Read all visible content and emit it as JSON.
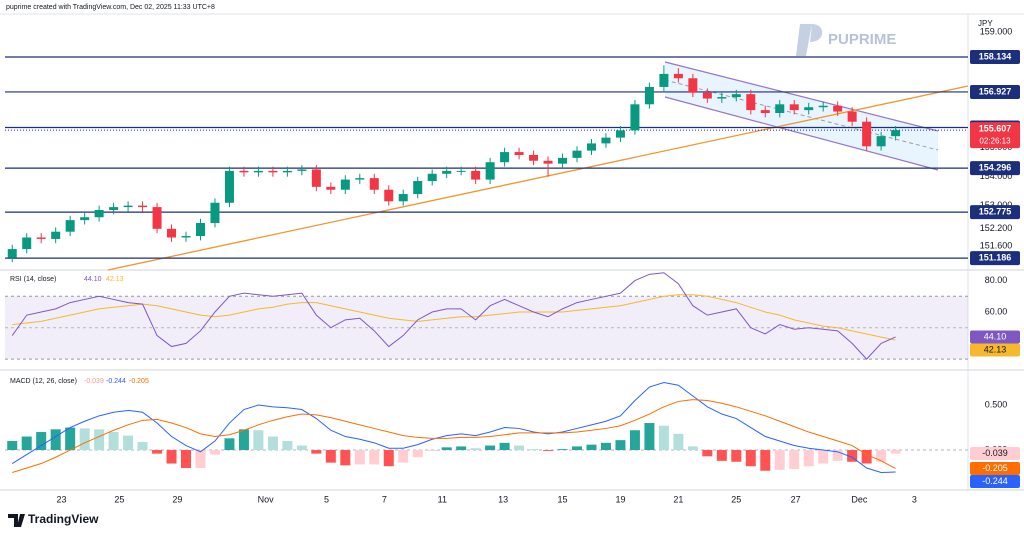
{
  "header": "puprime created with TradingView.com, Dec 02, 2025 11:33 UTC+8",
  "watermark": "PUPRIME",
  "brand": "TradingView",
  "chart_data": [
    {
      "type": "candlestick",
      "currency": "JPY",
      "countdown": "02:26:13",
      "x": [
        0,
        1,
        2,
        3,
        4,
        5,
        6,
        7,
        8,
        9,
        10,
        11,
        12,
        13,
        14,
        15,
        16,
        17,
        18,
        19,
        20,
        21,
        22,
        23,
        24,
        25,
        26,
        27,
        28,
        29,
        30,
        31,
        32,
        33,
        34,
        35,
        36,
        37,
        38,
        39,
        40,
        41,
        42,
        43,
        44,
        45,
        46,
        47,
        48,
        49,
        50,
        51,
        52,
        53,
        54,
        55,
        56,
        57,
        58,
        59,
        60,
        61
      ],
      "open": [
        151.2,
        151.5,
        151.9,
        151.85,
        152.1,
        152.5,
        152.6,
        152.85,
        152.95,
        153.0,
        152.95,
        152.2,
        151.9,
        151.95,
        152.4,
        153.1,
        154.2,
        154.15,
        154.2,
        154.15,
        154.2,
        154.25,
        153.65,
        153.55,
        153.9,
        153.95,
        153.55,
        153.15,
        153.4,
        153.85,
        154.1,
        154.2,
        154.2,
        153.9,
        154.5,
        154.85,
        154.75,
        154.55,
        154.45,
        154.65,
        154.9,
        155.15,
        155.35,
        155.6,
        156.5,
        157.1,
        157.55,
        157.4,
        156.9,
        156.7,
        156.75,
        156.85,
        156.3,
        156.2,
        156.5,
        156.3,
        156.4,
        156.45,
        156.25,
        155.9,
        155.05,
        155.4
      ],
      "high": [
        151.65,
        152.05,
        152.05,
        152.25,
        152.65,
        152.75,
        153.0,
        153.1,
        153.15,
        153.15,
        153.1,
        152.35,
        152.1,
        152.55,
        153.25,
        154.35,
        154.35,
        154.35,
        154.35,
        154.35,
        154.4,
        154.4,
        153.8,
        154.05,
        154.1,
        154.1,
        153.7,
        153.55,
        154.0,
        154.25,
        154.35,
        154.35,
        154.35,
        154.65,
        155.0,
        155.0,
        154.9,
        154.7,
        154.8,
        155.05,
        155.3,
        155.5,
        155.75,
        156.65,
        157.25,
        157.85,
        157.75,
        157.55,
        157.05,
        156.9,
        157.0,
        157.0,
        156.45,
        156.65,
        156.65,
        156.55,
        156.6,
        156.6,
        156.4,
        156.05,
        155.55,
        155.75
      ],
      "low": [
        151.05,
        151.35,
        151.7,
        151.7,
        151.95,
        152.35,
        152.45,
        152.7,
        152.8,
        152.8,
        152.05,
        151.75,
        151.75,
        151.8,
        152.25,
        152.95,
        154.0,
        154.0,
        154.0,
        154.0,
        154.05,
        153.5,
        153.4,
        153.4,
        153.75,
        153.4,
        153.0,
        153.0,
        153.25,
        153.7,
        153.95,
        154.05,
        153.75,
        153.75,
        154.35,
        154.6,
        154.4,
        154.0,
        154.3,
        154.5,
        154.75,
        155.0,
        155.2,
        155.45,
        156.35,
        156.95,
        157.25,
        156.75,
        156.55,
        156.55,
        156.6,
        156.15,
        156.05,
        156.05,
        156.15,
        156.15,
        156.25,
        156.1,
        155.75,
        154.9,
        154.9,
        155.25
      ],
      "close": [
        151.5,
        151.9,
        151.85,
        152.1,
        152.5,
        152.6,
        152.85,
        152.95,
        153.0,
        152.95,
        152.2,
        151.9,
        151.95,
        152.4,
        153.1,
        154.2,
        154.15,
        154.2,
        154.15,
        154.2,
        154.25,
        153.65,
        153.55,
        153.9,
        153.95,
        153.55,
        153.15,
        153.4,
        153.85,
        154.1,
        154.2,
        154.2,
        153.9,
        154.5,
        154.85,
        154.75,
        154.55,
        154.45,
        154.65,
        154.9,
        155.15,
        155.35,
        155.6,
        156.5,
        157.1,
        157.55,
        157.4,
        156.9,
        156.7,
        156.75,
        156.85,
        156.3,
        156.2,
        156.5,
        156.3,
        156.4,
        156.45,
        156.25,
        155.9,
        155.05,
        155.4,
        155.607
      ],
      "up_color": "#089981",
      "down_color": "#f23645",
      "xlim": [
        -0.5,
        66
      ],
      "xticks": [
        {
          "value": 3.4,
          "label": "23"
        },
        {
          "value": 7.4,
          "label": "25"
        },
        {
          "value": 11.4,
          "label": "29"
        },
        {
          "value": 17.5,
          "label": "Nov"
        },
        {
          "value": 21.7,
          "label": "5"
        },
        {
          "value": 25.7,
          "label": "7"
        },
        {
          "value": 29.7,
          "label": "11"
        },
        {
          "value": 33.9,
          "label": "13"
        },
        {
          "value": 38,
          "label": "15"
        },
        {
          "value": 42,
          "label": "19"
        },
        {
          "value": 46,
          "label": "21"
        },
        {
          "value": 50,
          "label": "25"
        },
        {
          "value": 54.1,
          "label": "27"
        },
        {
          "value": 58.5,
          "label": "Dec"
        },
        {
          "value": 62.3,
          "label": "3"
        }
      ],
      "ylim": [
        150.846,
        159.585
      ],
      "yticks": [
        {
          "value": 159,
          "label": "159.000"
        },
        {
          "value": 155,
          "label": "155.000"
        },
        {
          "value": 154,
          "label": "154.000"
        },
        {
          "value": 153,
          "label": "153.000"
        },
        {
          "value": 152.2,
          "label": "152.200"
        },
        {
          "value": 151.6,
          "label": "151.600"
        }
      ],
      "levels": [
        158.134,
        156.927,
        155.699,
        154.296,
        152.775,
        151.186
      ],
      "level_color": "#1c2f7c"
    },
    {
      "type": "line",
      "title": "RSI (14, close)",
      "x": [
        0,
        1,
        2,
        3,
        4,
        5,
        6,
        7,
        8,
        9,
        10,
        11,
        12,
        13,
        14,
        15,
        16,
        17,
        18,
        19,
        20,
        21,
        22,
        23,
        24,
        25,
        26,
        27,
        28,
        29,
        30,
        31,
        32,
        33,
        34,
        35,
        36,
        37,
        38,
        39,
        40,
        41,
        42,
        43,
        44,
        45,
        46,
        47,
        48,
        49,
        50,
        51,
        52,
        53,
        54,
        55,
        56,
        57,
        58,
        59,
        60,
        61
      ],
      "series": [
        {
          "color": "#7e57c2",
          "value_label": "44.10",
          "values": [
            45,
            58,
            60,
            62,
            66,
            68,
            70,
            68,
            66,
            65,
            45,
            38,
            40,
            48,
            60,
            70,
            72,
            71,
            70,
            71,
            72,
            58,
            50,
            55,
            56,
            48,
            38,
            45,
            55,
            60,
            62,
            62,
            55,
            64,
            68,
            64,
            60,
            57,
            62,
            66,
            68,
            70,
            72,
            80,
            84,
            85,
            78,
            64,
            58,
            60,
            62,
            50,
            46,
            52,
            49,
            50,
            49,
            48,
            40,
            30,
            40,
            44.1
          ]
        },
        {
          "color": "#f5b82e",
          "values": [
            52,
            53,
            54,
            56,
            58,
            60,
            62,
            63,
            64,
            65,
            64,
            62,
            60,
            58,
            57,
            58,
            60,
            62,
            63,
            65,
            66,
            66,
            64,
            62,
            60,
            58,
            56,
            55,
            54,
            55,
            56,
            57,
            57,
            58,
            59,
            60,
            60,
            60,
            60,
            61,
            62,
            63,
            64,
            66,
            68,
            70,
            71,
            71,
            70,
            68,
            66,
            63,
            60,
            58,
            55,
            53,
            51,
            50,
            48,
            46,
            44,
            42.13
          ]
        }
      ],
      "band": [
        30,
        70
      ],
      "band_color": "#7e57c2",
      "midline": 50,
      "ylim": [
        24.33,
        85.48
      ],
      "yticks": [
        {
          "value": 60,
          "label": "60.00"
        },
        {
          "value": 80,
          "label": "80.00"
        }
      ]
    },
    {
      "type": "macd",
      "title": "MACD (12, 26, close)",
      "x": [
        0,
        1,
        2,
        3,
        4,
        5,
        6,
        7,
        8,
        9,
        10,
        11,
        12,
        13,
        14,
        15,
        16,
        17,
        18,
        19,
        20,
        21,
        22,
        23,
        24,
        25,
        26,
        27,
        28,
        29,
        30,
        31,
        32,
        33,
        34,
        35,
        36,
        37,
        38,
        39,
        40,
        41,
        42,
        43,
        44,
        45,
        46,
        47,
        48,
        49,
        50,
        51,
        52,
        53,
        54,
        55,
        56,
        57,
        58,
        59,
        60,
        61
      ],
      "histogram": [
        0.1,
        0.15,
        0.2,
        0.23,
        0.25,
        0.24,
        0.23,
        0.2,
        0.16,
        0.09,
        -0.04,
        -0.15,
        -0.2,
        -0.2,
        -0.05,
        0.13,
        0.23,
        0.22,
        0.15,
        0.1,
        0.05,
        -0.04,
        -0.14,
        -0.17,
        -0.16,
        -0.16,
        -0.18,
        -0.14,
        -0.08,
        -0.01,
        0.03,
        0.04,
        0.02,
        0.05,
        0.08,
        0.05,
        0.01,
        -0.01,
        0.01,
        0.04,
        0.06,
        0.08,
        0.11,
        0.22,
        0.3,
        0.27,
        0.18,
        0.04,
        -0.07,
        -0.12,
        -0.13,
        -0.18,
        -0.23,
        -0.22,
        -0.21,
        -0.18,
        -0.15,
        -0.12,
        -0.13,
        -0.15,
        -0.13,
        -0.039
      ],
      "histogram_colors": [
        "#26a69a",
        "#b2dfdb",
        "#ff5252",
        "#ffcdd2"
      ],
      "series": [
        {
          "color": "#2962ff",
          "values": [
            -0.15,
            -0.05,
            0.05,
            0.15,
            0.25,
            0.32,
            0.38,
            0.42,
            0.44,
            0.42,
            0.3,
            0.15,
            0.05,
            -0.02,
            0.1,
            0.3,
            0.45,
            0.5,
            0.48,
            0.47,
            0.45,
            0.35,
            0.22,
            0.15,
            0.12,
            0.08,
            0.02,
            0.02,
            0.06,
            0.12,
            0.16,
            0.18,
            0.16,
            0.2,
            0.25,
            0.24,
            0.2,
            0.18,
            0.2,
            0.24,
            0.28,
            0.32,
            0.38,
            0.55,
            0.7,
            0.75,
            0.72,
            0.6,
            0.48,
            0.4,
            0.35,
            0.25,
            0.15,
            0.1,
            0.05,
            0.02,
            0.0,
            -0.02,
            -0.08,
            -0.2,
            -0.25,
            -0.244
          ]
        },
        {
          "color": "#ff6d00",
          "values": [
            -0.25,
            -0.2,
            -0.15,
            -0.08,
            0.0,
            0.08,
            0.15,
            0.22,
            0.28,
            0.33,
            0.34,
            0.3,
            0.25,
            0.18,
            0.15,
            0.17,
            0.22,
            0.28,
            0.33,
            0.37,
            0.4,
            0.39,
            0.36,
            0.32,
            0.28,
            0.24,
            0.2,
            0.16,
            0.14,
            0.13,
            0.13,
            0.14,
            0.14,
            0.15,
            0.17,
            0.19,
            0.19,
            0.19,
            0.19,
            0.2,
            0.22,
            0.24,
            0.27,
            0.33,
            0.4,
            0.48,
            0.54,
            0.56,
            0.55,
            0.52,
            0.48,
            0.43,
            0.38,
            0.32,
            0.26,
            0.2,
            0.15,
            0.1,
            0.05,
            -0.05,
            -0.12,
            -0.205
          ]
        }
      ],
      "ylim": [
        -0.444,
        0.867
      ],
      "yticks": [
        {
          "value": 0.5,
          "label": "0.500"
        },
        {
          "value": 0,
          "label": "0.000"
        }
      ]
    }
  ]
}
